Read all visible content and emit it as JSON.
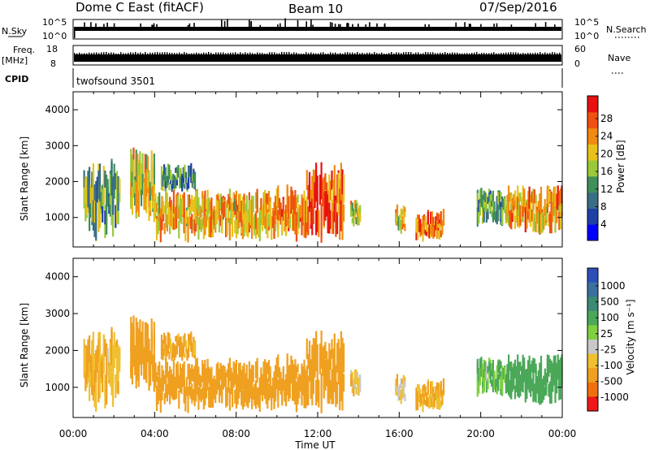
{
  "header": {
    "station": "Dome C East (fitACF)",
    "beam": "Beam 10",
    "date": "07/Sep/2016"
  },
  "strips": {
    "nsky_label": "N.Sky",
    "nsky_ticks": [
      "10^5",
      "10^0"
    ],
    "nsearch_label": "N.Search",
    "nsearch_ticks": [
      "10^5",
      "10^0"
    ],
    "freq_label_1": "Freq.",
    "freq_label_2": "[MHz]",
    "freq_ticks": [
      "18",
      "8"
    ],
    "nave_label": "Nave",
    "nave_ticks": [
      "60",
      "0"
    ],
    "cpid_label": "CPID",
    "cpid_value": "twofsound 3501"
  },
  "axes": {
    "xlabel": "Time UT",
    "ylabel": "Slant Range [km]",
    "x_ticks": [
      "00:00",
      "04:00",
      "08:00",
      "12:00",
      "16:00",
      "20:00",
      "00:00"
    ],
    "y_ticks": [
      "1000",
      "2000",
      "3000",
      "4000"
    ]
  },
  "power_scale": {
    "label": "Power [dB]",
    "ticks": [
      "28",
      "24",
      "20",
      "16",
      "12",
      "8",
      "4"
    ],
    "colors": [
      "#0000ff",
      "#1e3fa8",
      "#3a6e84",
      "#3f8f5a",
      "#9ac93a",
      "#e8c21a",
      "#f08a10",
      "#f05010",
      "#e81010"
    ]
  },
  "velocity_scale": {
    "label": "Velocity [m s⁻¹]",
    "ticks": [
      "1000",
      "500",
      "100",
      "25",
      "-25",
      "-100",
      "-500",
      "-1000"
    ],
    "colors": [
      "#2c4fb8",
      "#3a70a0",
      "#3c8a74",
      "#4aa858",
      "#7fcf3f",
      "#c8c8c8",
      "#f0c030",
      "#f0a020",
      "#f07010",
      "#f01818"
    ]
  },
  "chart_data": {
    "type": "heatmap",
    "panels": [
      "Power [dB]",
      "Velocity [m s⁻¹]"
    ],
    "xlabel": "Time UT",
    "ylabel": "Slant Range [km]",
    "xlim_hours": [
      0,
      24
    ],
    "ylim_km": [
      180,
      4500
    ],
    "power_range_db": [
      0,
      30
    ],
    "velocity_range": [
      -1000,
      1000
    ],
    "echo_regions": [
      {
        "t0": 0.5,
        "t1": 2.3,
        "r0": 700,
        "r1": 2300,
        "power_db": 12,
        "velocity": -100
      },
      {
        "t0": 2.8,
        "t1": 4.0,
        "r0": 1200,
        "r1": 2700,
        "power_db": 18,
        "velocity": -200
      },
      {
        "t0": 4.3,
        "t1": 6.0,
        "r0": 1800,
        "r1": 2400,
        "power_db": 10,
        "velocity": -150
      },
      {
        "t0": 4.0,
        "t1": 9.5,
        "r0": 550,
        "r1": 1600,
        "power_db": 20,
        "velocity": -300
      },
      {
        "t0": 9.5,
        "t1": 11.5,
        "r0": 550,
        "r1": 1700,
        "power_db": 22,
        "velocity": -300
      },
      {
        "t0": 11.3,
        "t1": 13.3,
        "r0": 650,
        "r1": 2200,
        "power_db": 26,
        "velocity": -200
      },
      {
        "t0": 13.6,
        "t1": 14.1,
        "r0": 800,
        "r1": 1400,
        "power_db": 18,
        "velocity": -50
      },
      {
        "t0": 15.8,
        "t1": 16.3,
        "r0": 650,
        "r1": 1250,
        "power_db": 20,
        "velocity": -50
      },
      {
        "t0": 16.8,
        "t1": 18.2,
        "r0": 450,
        "r1": 1100,
        "power_db": 24,
        "velocity": -100
      },
      {
        "t0": 19.8,
        "t1": 21.2,
        "r0": 900,
        "r1": 1700,
        "power_db": 12,
        "velocity": 100
      },
      {
        "t0": 21.2,
        "t1": 24.0,
        "r0": 750,
        "r1": 1750,
        "power_db": 22,
        "velocity": 200
      }
    ]
  }
}
